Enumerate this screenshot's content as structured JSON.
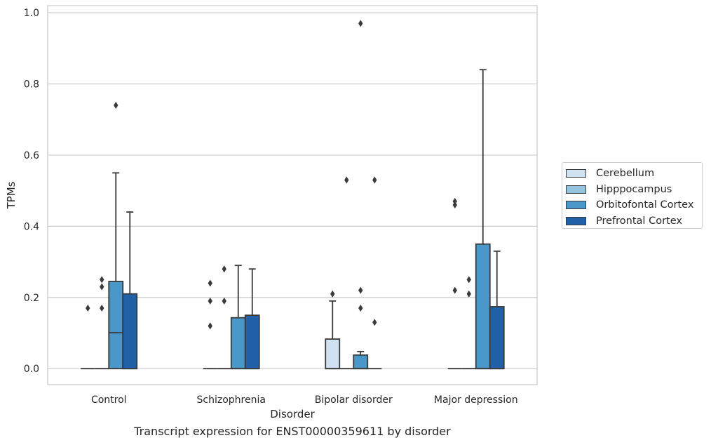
{
  "chart_data": {
    "type": "box",
    "xlabel": "Disorder",
    "ylabel": "TPMs",
    "caption": "Transcript expression for ENST00000359611 by disorder",
    "categories": [
      "Control",
      "Schizophrenia",
      "Bipolar disorder",
      "Major depression"
    ],
    "ylim": [
      -0.045,
      1.02
    ],
    "yticks": [
      0.0,
      0.2,
      0.4,
      0.6,
      0.8,
      1.0
    ],
    "ytick_labels": [
      "0.0",
      "0.2",
      "0.4",
      "0.6",
      "0.8",
      "1.0"
    ],
    "grid": "horizontal",
    "legend_position": "right",
    "series": [
      {
        "name": "Cerebellum",
        "color": "#d0e1f2",
        "boxes": [
          {
            "q1": 0,
            "median": 0,
            "q3": 0,
            "whisker_low": 0,
            "whisker_high": 0,
            "outliers": [
              0.17
            ]
          },
          {
            "q1": 0,
            "median": 0,
            "q3": 0,
            "whisker_low": 0,
            "whisker_high": 0,
            "outliers": [
              0.12,
              0.19,
              0.24
            ]
          },
          {
            "q1": 0,
            "median": 0,
            "q3": 0.083,
            "whisker_low": 0,
            "whisker_high": 0.19,
            "outliers": [
              0.21
            ]
          },
          {
            "q1": 0,
            "median": 0,
            "q3": 0,
            "whisker_low": 0,
            "whisker_high": 0,
            "outliers": [
              0.22,
              0.46,
              0.47
            ]
          }
        ]
      },
      {
        "name": "Hipppocampus",
        "color": "#94c4df",
        "boxes": [
          {
            "q1": 0,
            "median": 0,
            "q3": 0,
            "whisker_low": 0,
            "whisker_high": 0,
            "outliers": [
              0.17,
              0.23,
              0.25
            ]
          },
          {
            "q1": 0,
            "median": 0,
            "q3": 0,
            "whisker_low": 0,
            "whisker_high": 0,
            "outliers": [
              0.19,
              0.28
            ]
          },
          {
            "q1": 0,
            "median": 0,
            "q3": 0,
            "whisker_low": 0,
            "whisker_high": 0,
            "outliers": [
              0.53
            ]
          },
          {
            "q1": 0,
            "median": 0,
            "q3": 0,
            "whisker_low": 0,
            "whisker_high": 0,
            "outliers": [
              0.21,
              0.25
            ]
          }
        ]
      },
      {
        "name": "Orbitofontal Cortex",
        "color": "#4a98c9",
        "boxes": [
          {
            "q1": 0,
            "median": 0.101,
            "q3": 0.245,
            "whisker_low": 0,
            "whisker_high": 0.55,
            "outliers": [
              0.74
            ]
          },
          {
            "q1": 0,
            "median": 0,
            "q3": 0.143,
            "whisker_low": 0,
            "whisker_high": 0.29,
            "outliers": []
          },
          {
            "q1": 0,
            "median": 0,
            "q3": 0.038,
            "whisker_low": 0,
            "whisker_high": 0.048,
            "outliers": [
              0.17,
              0.22,
              0.97
            ]
          },
          {
            "q1": 0,
            "median": 0,
            "q3": 0.35,
            "whisker_low": 0,
            "whisker_high": 0.84,
            "outliers": []
          }
        ]
      },
      {
        "name": "Prefrontal Cortex",
        "color": "#2161a8",
        "boxes": [
          {
            "q1": 0,
            "median": 0,
            "q3": 0.21,
            "whisker_low": 0,
            "whisker_high": 0.44,
            "outliers": []
          },
          {
            "q1": 0,
            "median": 0,
            "q3": 0.15,
            "whisker_low": 0,
            "whisker_high": 0.28,
            "outliers": []
          },
          {
            "q1": 0,
            "median": 0,
            "q3": 0,
            "whisker_low": 0,
            "whisker_high": 0,
            "outliers": [
              0.13,
              0.53
            ]
          },
          {
            "q1": 0,
            "median": 0,
            "q3": 0.174,
            "whisker_low": 0,
            "whisker_high": 0.33,
            "outliers": []
          }
        ]
      }
    ]
  }
}
